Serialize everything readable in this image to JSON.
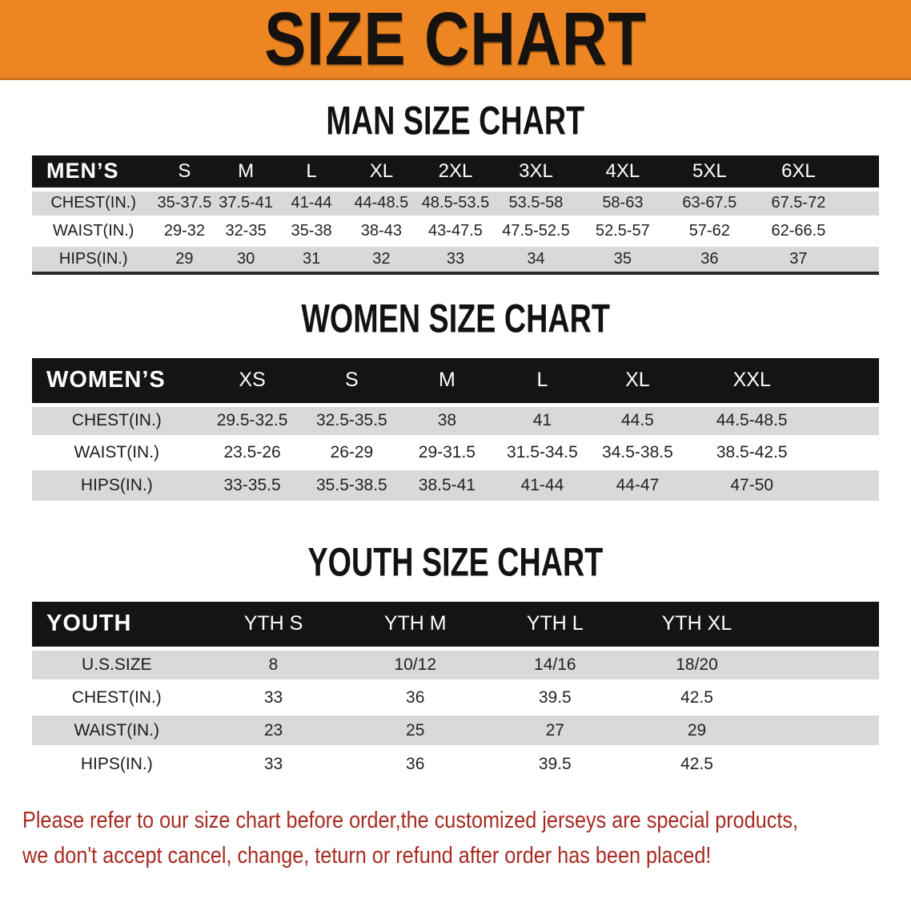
{
  "banner": {
    "title": "SIZE CHART",
    "bg_color": "#ED8622",
    "text_color": "#161210"
  },
  "colors": {
    "table_header_bg": "#141414",
    "table_alt_row_bg": "#d9d9d9",
    "footer_text_color": "#A62B22"
  },
  "men": {
    "heading": "MAN SIZE CHART",
    "header_label": "MEN’S",
    "sizes": [
      "S",
      "M",
      "L",
      "XL",
      "2XL",
      "3XL",
      "4XL",
      "5XL",
      "6XL"
    ],
    "rows": [
      {
        "label": "CHEST(IN.)",
        "values": [
          "35-37.5",
          "37.5-41",
          "41-44",
          "44-48.5",
          "48.5-53.5",
          "53.5-58",
          "58-63",
          "63-67.5",
          "67.5-72"
        ]
      },
      {
        "label": "WAIST(IN.)",
        "values": [
          "29-32",
          "32-35",
          "35-38",
          "38-43",
          "43-47.5",
          "47.5-52.5",
          "52.5-57",
          "57-62",
          "62-66.5"
        ]
      },
      {
        "label": "HIPS(IN.)",
        "values": [
          "29",
          "30",
          "31",
          "32",
          "33",
          "34",
          "35",
          "36",
          "37"
        ]
      }
    ]
  },
  "women": {
    "heading": "WOMEN SIZE CHART",
    "header_label": "WOMEN’S",
    "sizes": [
      "XS",
      "S",
      "M",
      "L",
      "XL",
      "XXL"
    ],
    "rows": [
      {
        "label": "CHEST(IN.)",
        "values": [
          "29.5-32.5",
          "32.5-35.5",
          "38",
          "41",
          "44.5",
          "44.5-48.5"
        ]
      },
      {
        "label": "WAIST(IN.)",
        "values": [
          "23.5-26",
          "26-29",
          "29-31.5",
          "31.5-34.5",
          "34.5-38.5",
          "38.5-42.5"
        ]
      },
      {
        "label": "HIPS(IN.)",
        "values": [
          "33-35.5",
          "35.5-38.5",
          "38.5-41",
          "41-44",
          "44-47",
          "47-50"
        ]
      }
    ]
  },
  "youth": {
    "heading": "YOUTH SIZE CHART",
    "header_label": "YOUTH",
    "sizes": [
      "YTH S",
      "YTH M",
      "YTH L",
      "YTH XL"
    ],
    "rows": [
      {
        "label": "U.S.SIZE",
        "values": [
          "8",
          "10/12",
          "14/16",
          "18/20"
        ]
      },
      {
        "label": "CHEST(IN.)",
        "values": [
          "33",
          "36",
          "39.5",
          "42.5"
        ]
      },
      {
        "label": "WAIST(IN.)",
        "values": [
          "23",
          "25",
          "27",
          "29"
        ]
      },
      {
        "label": "HIPS(IN.)",
        "values": [
          "33",
          "36",
          "39.5",
          "42.5"
        ]
      }
    ]
  },
  "footer": {
    "line1": "Please refer to our size chart before order,the customized jerseys are special products,",
    "line2": "we don't accept cancel, change, teturn or refund after order has been placed!"
  }
}
